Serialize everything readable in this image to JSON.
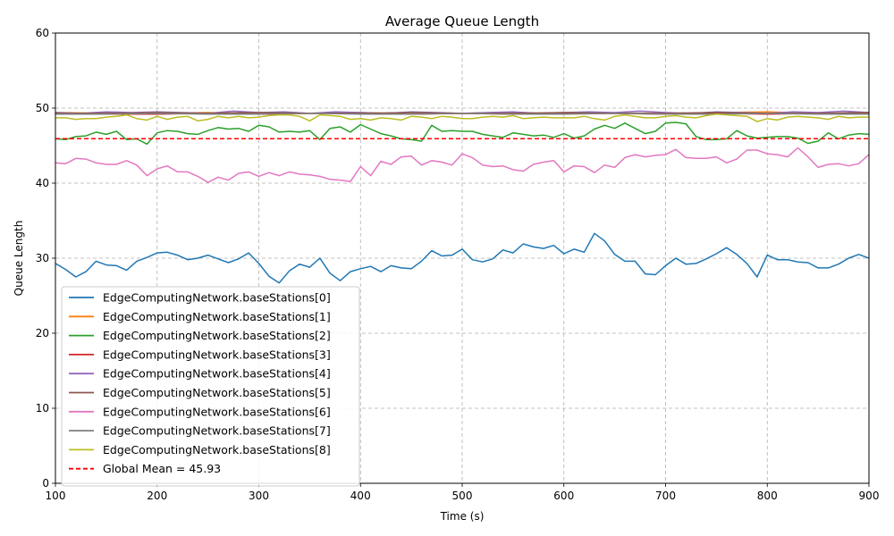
{
  "chart_data": {
    "type": "line",
    "title": "Average Queue Length",
    "xlabel": "Time (s)",
    "ylabel": "Queue Length",
    "xlim": [
      100,
      900
    ],
    "ylim": [
      0,
      60
    ],
    "xticks": [
      "100",
      "200",
      "300",
      "400",
      "500",
      "600",
      "700",
      "800",
      "900"
    ],
    "yticks": [
      "0",
      "10",
      "20",
      "30",
      "40",
      "50",
      "60"
    ],
    "grid": true,
    "grid_style": "dashed",
    "legend_position": "lower-left",
    "series": [
      {
        "name": "EdgeComputingNetwork.baseStations[0]",
        "color": "#1f77b4",
        "x": [
          100,
          110,
          120,
          130,
          140,
          150,
          160,
          170,
          180,
          190,
          200,
          210,
          220,
          230,
          240,
          250,
          260,
          270,
          280,
          290,
          300,
          310,
          320,
          330,
          340,
          350,
          360,
          370,
          380,
          390,
          400,
          410,
          420,
          430,
          440,
          450,
          460,
          470,
          480,
          490,
          500,
          510,
          520,
          530,
          540,
          550,
          560,
          570,
          580,
          590,
          600,
          610,
          620,
          630,
          640,
          650,
          660,
          670,
          680,
          690,
          700,
          710,
          720,
          730,
          740,
          750,
          760,
          770,
          780,
          790,
          800,
          810,
          820,
          830,
          840,
          850,
          860,
          870,
          880,
          890,
          900
        ],
        "y": [
          29.3,
          28.5,
          27.5,
          28.2,
          29.6,
          29.1,
          29.0,
          28.4,
          29.6,
          30.1,
          30.7,
          30.8,
          30.4,
          29.8,
          30.0,
          30.4,
          29.9,
          29.4,
          29.9,
          30.7,
          29.3,
          27.6,
          26.7,
          28.3,
          29.2,
          28.8,
          30.0,
          28.0,
          27.0,
          28.2,
          28.6,
          28.9,
          28.2,
          29.0,
          28.7,
          28.6,
          29.6,
          31.0,
          30.3,
          30.4,
          31.2,
          29.8,
          29.5,
          29.9,
          31.1,
          30.7,
          31.9,
          31.5,
          31.3,
          31.7,
          30.6,
          31.2,
          30.8,
          33.3,
          32.3,
          30.5,
          29.6,
          29.6,
          27.9,
          27.8,
          29.0,
          30.0,
          29.2,
          29.3,
          29.9,
          30.6,
          31.4,
          30.5,
          29.3,
          27.5,
          30.4,
          29.8,
          29.8,
          29.5,
          29.4,
          28.7,
          28.7,
          29.2,
          30.0,
          30.5,
          30.0
        ]
      },
      {
        "name": "EdgeComputingNetwork.baseStations[1]",
        "color": "#ff7f0e",
        "x": [
          100,
          150,
          200,
          250,
          300,
          350,
          400,
          450,
          500,
          550,
          600,
          650,
          700,
          750,
          800,
          850,
          900
        ],
        "y": [
          49.4,
          49.3,
          49.3,
          49.4,
          49.2,
          49.3,
          49.4,
          49.2,
          49.3,
          49.4,
          49.2,
          49.3,
          49.3,
          49.4,
          49.5,
          49.3,
          49.3
        ]
      },
      {
        "name": "EdgeComputingNetwork.baseStations[2]",
        "color": "#2ca02c",
        "x": [
          100,
          110,
          120,
          130,
          140,
          150,
          160,
          170,
          180,
          190,
          200,
          210,
          220,
          230,
          240,
          250,
          260,
          270,
          280,
          290,
          300,
          310,
          320,
          330,
          340,
          350,
          360,
          370,
          380,
          390,
          400,
          410,
          420,
          430,
          440,
          450,
          460,
          470,
          480,
          490,
          500,
          510,
          520,
          530,
          540,
          550,
          560,
          570,
          580,
          590,
          600,
          610,
          620,
          630,
          640,
          650,
          660,
          670,
          680,
          690,
          700,
          710,
          720,
          730,
          740,
          750,
          760,
          770,
          780,
          790,
          800,
          810,
          820,
          830,
          840,
          850,
          860,
          870,
          880,
          890,
          900
        ],
        "y": [
          45.9,
          45.8,
          46.2,
          46.3,
          46.8,
          46.5,
          46.9,
          45.8,
          45.9,
          45.2,
          46.7,
          47.0,
          46.9,
          46.6,
          46.5,
          47.0,
          47.4,
          47.2,
          47.3,
          46.9,
          47.7,
          47.5,
          46.8,
          46.9,
          46.8,
          47.0,
          45.8,
          47.3,
          47.5,
          46.8,
          47.8,
          47.2,
          46.6,
          46.3,
          45.9,
          45.8,
          45.6,
          47.7,
          46.9,
          47.0,
          46.9,
          46.9,
          46.5,
          46.3,
          46.1,
          46.7,
          46.5,
          46.3,
          46.4,
          46.1,
          46.6,
          46.0,
          46.3,
          47.2,
          47.7,
          47.3,
          48.0,
          47.3,
          46.6,
          46.9,
          48.0,
          48.1,
          47.9,
          46.2,
          45.8,
          45.8,
          45.9,
          47.0,
          46.3,
          46.0,
          46.1,
          46.2,
          46.2,
          46.0,
          45.3,
          45.6,
          46.7,
          45.9,
          46.4,
          46.6,
          46.5
        ]
      },
      {
        "name": "EdgeComputingNetwork.baseStations[3]",
        "color": "#d62728",
        "x": [
          100,
          150,
          200,
          250,
          300,
          350,
          400,
          450,
          500,
          550,
          600,
          650,
          700,
          750,
          800,
          850,
          900
        ],
        "y": [
          49.3,
          49.2,
          49.2,
          49.3,
          49.2,
          49.3,
          49.3,
          49.2,
          49.3,
          49.2,
          49.3,
          49.3,
          49.2,
          49.3,
          49.2,
          49.3,
          49.2
        ]
      },
      {
        "name": "EdgeComputingNetwork.baseStations[4]",
        "color": "#9467bd",
        "x": [
          100,
          125,
          150,
          175,
          200,
          225,
          250,
          275,
          300,
          325,
          350,
          375,
          400,
          425,
          450,
          475,
          500,
          525,
          550,
          575,
          600,
          625,
          650,
          675,
          700,
          725,
          750,
          775,
          800,
          825,
          850,
          875,
          900
        ],
        "y": [
          49.4,
          49.3,
          49.5,
          49.4,
          49.5,
          49.4,
          49.3,
          49.6,
          49.4,
          49.5,
          49.3,
          49.5,
          49.4,
          49.3,
          49.5,
          49.4,
          49.3,
          49.4,
          49.5,
          49.3,
          49.4,
          49.5,
          49.4,
          49.6,
          49.4,
          49.3,
          49.5,
          49.4,
          49.3,
          49.5,
          49.4,
          49.6,
          49.4
        ]
      },
      {
        "name": "EdgeComputingNetwork.baseStations[5]",
        "color": "#8c564b",
        "x": [
          100,
          150,
          200,
          250,
          300,
          350,
          400,
          450,
          500,
          550,
          600,
          650,
          700,
          750,
          800,
          850,
          900
        ],
        "y": [
          49.3,
          49.3,
          49.4,
          49.3,
          49.4,
          49.3,
          49.3,
          49.4,
          49.3,
          49.3,
          49.4,
          49.3,
          49.3,
          49.4,
          49.3,
          49.3,
          49.4
        ]
      },
      {
        "name": "EdgeComputingNetwork.baseStations[6]",
        "color": "#e377c2",
        "x": [
          100,
          110,
          120,
          130,
          140,
          150,
          160,
          170,
          180,
          190,
          200,
          210,
          220,
          230,
          240,
          250,
          260,
          270,
          280,
          290,
          300,
          310,
          320,
          330,
          340,
          350,
          360,
          370,
          380,
          390,
          400,
          410,
          420,
          430,
          440,
          450,
          460,
          470,
          480,
          490,
          500,
          510,
          520,
          530,
          540,
          550,
          560,
          570,
          580,
          590,
          600,
          610,
          620,
          630,
          640,
          650,
          660,
          670,
          680,
          690,
          700,
          710,
          720,
          730,
          740,
          750,
          760,
          770,
          780,
          790,
          800,
          810,
          820,
          830,
          840,
          850,
          860,
          870,
          880,
          890,
          900
        ],
        "y": [
          42.7,
          42.6,
          43.3,
          43.2,
          42.7,
          42.5,
          42.5,
          43.0,
          42.4,
          41.0,
          41.9,
          42.3,
          41.5,
          41.5,
          40.9,
          40.1,
          40.8,
          40.4,
          41.3,
          41.5,
          40.9,
          41.4,
          41.0,
          41.5,
          41.2,
          41.1,
          40.9,
          40.5,
          40.4,
          40.2,
          42.2,
          41.0,
          42.9,
          42.5,
          43.5,
          43.6,
          42.4,
          43.0,
          42.8,
          42.4,
          43.9,
          43.4,
          42.4,
          42.2,
          42.3,
          41.8,
          41.6,
          42.5,
          42.8,
          43.0,
          41.5,
          42.3,
          42.2,
          41.4,
          42.4,
          42.1,
          43.4,
          43.8,
          43.5,
          43.7,
          43.8,
          44.5,
          43.4,
          43.3,
          43.3,
          43.5,
          42.7,
          43.2,
          44.4,
          44.4,
          43.9,
          43.8,
          43.5,
          44.7,
          43.5,
          42.1,
          42.5,
          42.6,
          42.3,
          42.6,
          43.8
        ]
      },
      {
        "name": "EdgeComputingNetwork.baseStations[7]",
        "color": "#7f7f7f",
        "x": [
          100,
          150,
          200,
          250,
          300,
          350,
          400,
          450,
          500,
          550,
          600,
          650,
          700,
          750,
          800,
          850,
          900
        ],
        "y": [
          49.2,
          49.2,
          49.3,
          49.2,
          49.2,
          49.3,
          49.2,
          49.2,
          49.3,
          49.2,
          49.2,
          49.3,
          49.2,
          49.2,
          49.3,
          49.2,
          49.2
        ]
      },
      {
        "name": "EdgeComputingNetwork.baseStations[8]",
        "color": "#bcbd22",
        "x": [
          100,
          110,
          120,
          130,
          140,
          150,
          160,
          170,
          180,
          190,
          200,
          210,
          220,
          230,
          240,
          250,
          260,
          270,
          280,
          290,
          300,
          310,
          320,
          330,
          340,
          350,
          360,
          370,
          380,
          390,
          400,
          410,
          420,
          430,
          440,
          450,
          460,
          470,
          480,
          490,
          500,
          510,
          520,
          530,
          540,
          550,
          560,
          570,
          580,
          590,
          600,
          610,
          620,
          630,
          640,
          650,
          660,
          670,
          680,
          690,
          700,
          710,
          720,
          730,
          740,
          750,
          760,
          770,
          780,
          790,
          800,
          810,
          820,
          830,
          840,
          850,
          860,
          870,
          880,
          890,
          900
        ],
        "y": [
          48.7,
          48.7,
          48.5,
          48.6,
          48.6,
          48.8,
          48.9,
          49.1,
          48.6,
          48.4,
          48.9,
          48.5,
          48.8,
          48.9,
          48.3,
          48.5,
          48.9,
          48.7,
          48.9,
          48.7,
          48.8,
          49.0,
          49.1,
          49.1,
          48.9,
          48.3,
          49.1,
          49.0,
          48.9,
          48.5,
          48.6,
          48.4,
          48.7,
          48.6,
          48.4,
          48.9,
          48.8,
          48.6,
          48.9,
          48.8,
          48.6,
          48.6,
          48.8,
          48.9,
          48.8,
          49.0,
          48.6,
          48.7,
          48.8,
          48.7,
          48.7,
          48.7,
          48.9,
          48.6,
          48.4,
          48.9,
          49.1,
          48.9,
          48.7,
          48.7,
          48.9,
          49.0,
          48.8,
          48.7,
          49.0,
          49.2,
          49.1,
          49.0,
          48.9,
          48.2,
          48.6,
          48.4,
          48.8,
          48.9,
          48.8,
          48.7,
          48.5,
          48.9,
          48.7,
          48.8,
          48.8
        ]
      }
    ],
    "reference_lines": [
      {
        "name": "Global Mean = 45.93",
        "y": 45.93,
        "color": "#ff0000",
        "style": "dashed"
      }
    ]
  }
}
